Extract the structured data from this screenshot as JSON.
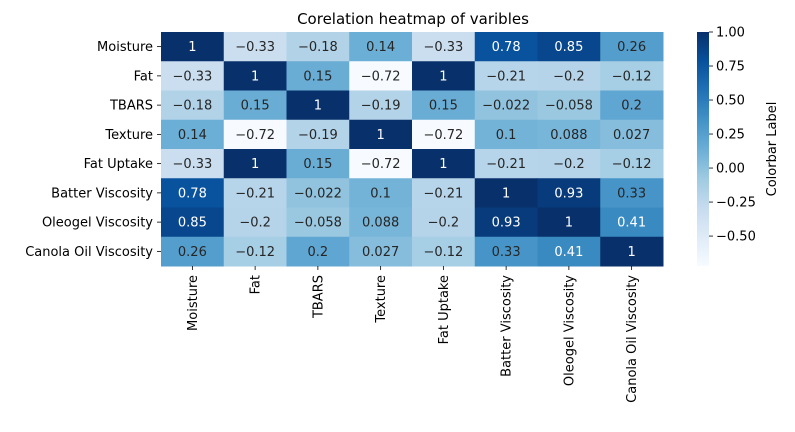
{
  "chart_data": {
    "type": "heatmap",
    "title": "Corelation heatmap of varibles",
    "xlabel": "",
    "ylabel": "",
    "variables": [
      "Moisture",
      "Fat",
      "TBARS",
      "Texture",
      "Fat Uptake",
      "Batter Viscosity",
      "Oleogel Viscosity",
      "Canola Oil Viscosity"
    ],
    "values": [
      [
        1,
        -0.33,
        -0.18,
        0.14,
        -0.33,
        0.78,
        0.85,
        0.26
      ],
      [
        -0.33,
        1,
        0.15,
        -0.72,
        1,
        -0.21,
        -0.2,
        -0.12
      ],
      [
        -0.18,
        0.15,
        1,
        -0.19,
        0.15,
        -0.022,
        -0.058,
        0.2
      ],
      [
        0.14,
        -0.72,
        -0.19,
        1,
        -0.72,
        0.1,
        0.088,
        0.027
      ],
      [
        -0.33,
        1,
        0.15,
        -0.72,
        1,
        -0.21,
        -0.2,
        -0.12
      ],
      [
        0.78,
        -0.21,
        -0.022,
        0.1,
        -0.21,
        1,
        0.93,
        0.33
      ],
      [
        0.85,
        -0.2,
        -0.058,
        0.088,
        -0.2,
        0.93,
        1,
        0.41
      ],
      [
        0.26,
        -0.12,
        0.2,
        0.027,
        -0.12,
        0.33,
        0.41,
        1
      ]
    ],
    "colorbar": {
      "label": "Colorbar Label",
      "range": [
        -0.72,
        1
      ],
      "ticks": [
        1.0,
        0.75,
        0.5,
        0.25,
        0.0,
        -0.25,
        -0.5
      ],
      "tick_labels": [
        "1.00",
        "0.75",
        "0.50",
        "0.25",
        "0.00",
        "−0.25",
        "−0.50"
      ]
    },
    "colormap": "Blues",
    "colormap_stops": [
      "#f7fbff",
      "#deebf7",
      "#c6dbef",
      "#9ecae1",
      "#6baed6",
      "#4292c6",
      "#2171b5",
      "#08519c",
      "#08306b"
    ]
  }
}
